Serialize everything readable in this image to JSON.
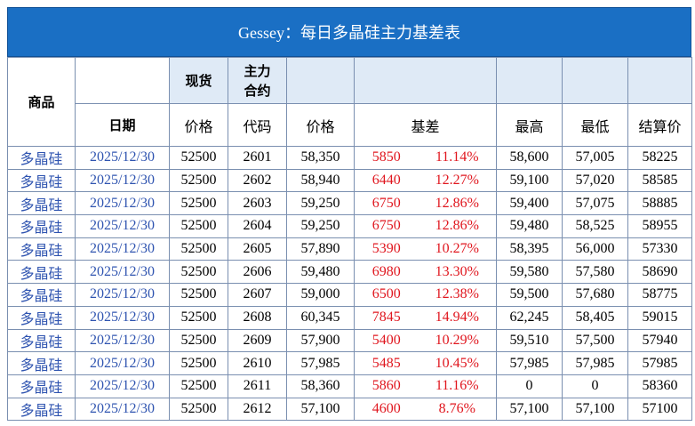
{
  "title": "Gessey：每日多晶硅主力基差表",
  "header": {
    "product": "商品",
    "spot": "现货",
    "main_contract": "主力合约",
    "date": "日期",
    "spot_price": "价格",
    "code": "代码",
    "price": "价格",
    "basis": "基差",
    "high": "最高",
    "low": "最低",
    "settle": "结算价"
  },
  "table": {
    "rows": [
      [
        "多晶硅",
        "2025/12/30",
        "52500",
        "2601",
        "58,350",
        "5850",
        "11.14%",
        "58,600",
        "57,005",
        "58225"
      ],
      [
        "多晶硅",
        "2025/12/30",
        "52500",
        "2602",
        "58,940",
        "6440",
        "12.27%",
        "59,100",
        "57,020",
        "58585"
      ],
      [
        "多晶硅",
        "2025/12/30",
        "52500",
        "2603",
        "59,250",
        "6750",
        "12.86%",
        "59,400",
        "57,075",
        "58885"
      ],
      [
        "多晶硅",
        "2025/12/30",
        "52500",
        "2604",
        "59,250",
        "6750",
        "12.86%",
        "59,480",
        "58,525",
        "58955"
      ],
      [
        "多晶硅",
        "2025/12/30",
        "52500",
        "2605",
        "57,890",
        "5390",
        "10.27%",
        "58,395",
        "56,000",
        "57330"
      ],
      [
        "多晶硅",
        "2025/12/30",
        "52500",
        "2606",
        "59,480",
        "6980",
        "13.30%",
        "59,580",
        "57,580",
        "58690"
      ],
      [
        "多晶硅",
        "2025/12/30",
        "52500",
        "2607",
        "59,000",
        "6500",
        "12.38%",
        "59,500",
        "57,680",
        "58775"
      ],
      [
        "多晶硅",
        "2025/12/30",
        "52500",
        "2608",
        "60,345",
        "7845",
        "14.94%",
        "62,245",
        "58,405",
        "59015"
      ],
      [
        "多晶硅",
        "2025/12/30",
        "52500",
        "2609",
        "57,900",
        "5400",
        "10.29%",
        "59,510",
        "57,500",
        "57940"
      ],
      [
        "多晶硅",
        "2025/12/30",
        "52500",
        "2610",
        "57,985",
        "5485",
        "10.45%",
        "57,985",
        "57,985",
        "57985"
      ],
      [
        "多晶硅",
        "2025/12/30",
        "52500",
        "2611",
        "58,360",
        "5860",
        "11.16%",
        "0",
        "0",
        "58360"
      ],
      [
        "多晶硅",
        "2025/12/30",
        "52500",
        "2612",
        "57,100",
        "4600",
        "8.76%",
        "57,100",
        "57,100",
        "57100"
      ]
    ]
  }
}
